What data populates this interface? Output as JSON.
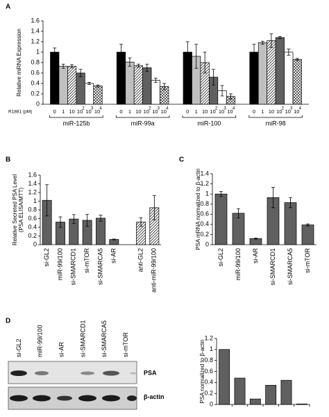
{
  "chart_data": [
    {
      "panel": "A",
      "type": "bar",
      "ylabel": [
        "Relative miRNA Expression"
      ],
      "xlabel": "R1881 (pM)",
      "categories": [
        "miR-125b",
        "miR-99a",
        "miR-100",
        "miR-98"
      ],
      "ylim": [
        0,
        1.6
      ],
      "yticks": [
        0,
        0.2,
        0.4,
        0.6,
        0.8,
        1,
        1.2,
        1.4,
        1.6
      ],
      "series": [
        {
          "name": "0",
          "color": "#000000",
          "values": [
            1,
            1,
            1,
            1
          ],
          "errors": [
            0.08,
            0.15,
            0.2,
            0.15
          ]
        },
        {
          "name": "1",
          "color": "#c0c0c0",
          "values": [
            0.73,
            0.81,
            0.92,
            1.18
          ],
          "errors": [
            0.04,
            0.08,
            0.23,
            0.03
          ]
        },
        {
          "name": "10",
          "color": "#ffffff",
          "pattern": "diagonal",
          "values": [
            0.73,
            0.74,
            0.8,
            1.22
          ],
          "errors": [
            0.03,
            0.03,
            0.2,
            0.13
          ]
        },
        {
          "name": "10",
          "exponent": "2",
          "color": "#606060",
          "values": [
            0.6,
            0.7,
            0.52,
            1.28
          ],
          "errors": [
            0.07,
            0.07,
            0.15,
            0.02
          ]
        },
        {
          "name": "10",
          "exponent": "3",
          "color": "#ffffff",
          "values": [
            0.4,
            0.46,
            0.26,
            1.0
          ],
          "errors": [
            0.02,
            0.04,
            0.1,
            0.06
          ]
        },
        {
          "name": "10",
          "exponent": "4",
          "color": "#ffffff",
          "pattern": "crosshatch",
          "values": [
            0.35,
            0.34,
            0.15,
            0.86
          ],
          "errors": [
            0.02,
            0.06,
            0.05,
            0.02
          ]
        }
      ]
    },
    {
      "panel": "B",
      "type": "bar",
      "ylabel": [
        "Relative Secreted PSA Level",
        "(PSA ELISA/MTT)"
      ],
      "categories": [
        "si-GL2",
        "miR-99/100",
        "si-SMARCD1",
        "si-mTOR",
        "si-SMARCA5",
        "si-AR",
        null,
        "anti-GL2",
        "anti-miR-99/100"
      ],
      "values": [
        1.02,
        0.52,
        0.59,
        0.56,
        0.61,
        0.12,
        null,
        0.52,
        0.85
      ],
      "errors": [
        0.36,
        0.12,
        0.1,
        0.14,
        0.07,
        0.01,
        null,
        0.1,
        0.28
      ],
      "color": "#606060",
      "bar_patterns": [
        null,
        null,
        null,
        null,
        null,
        null,
        null,
        "diagonal",
        "diagonal"
      ],
      "ylim": [
        0,
        1.6
      ],
      "yticks": [
        0,
        0.2,
        0.4,
        0.6,
        0.8,
        1,
        1.2,
        1.4,
        1.6
      ]
    },
    {
      "panel": "C",
      "type": "bar",
      "ylabel": [
        "PSA mRNA normalized to β-actin"
      ],
      "categories": [
        "si-GL2",
        "miR-99/100",
        "si-AR",
        "si-SMARCD1",
        "si-SMARCA5",
        "si-mTOR"
      ],
      "values": [
        1.0,
        0.62,
        0.12,
        0.93,
        0.83,
        0.39
      ],
      "errors": [
        0.05,
        0.09,
        0.01,
        0.2,
        0.1,
        0.02
      ],
      "color": "#606060",
      "ylim": [
        0,
        1.4
      ],
      "yticks": [
        0,
        0.2,
        0.4,
        0.6,
        0.8,
        1,
        1.2,
        1.4
      ]
    },
    {
      "panel": "D",
      "type": "blot",
      "lanes": [
        "si-GL2",
        "miR-99/100",
        "si-AR",
        "si-SMARCD1",
        "si-SMARCA5",
        "si-mTOR"
      ],
      "rows": [
        "PSA",
        "β-actin"
      ]
    },
    {
      "type": "bar",
      "ylabel": [
        "PSA normalized to β-actin"
      ],
      "values": [
        1.0,
        0.48,
        0.1,
        0.35,
        0.44,
        0.01
      ],
      "color": "#606060",
      "ylim": [
        0,
        1.2
      ],
      "yticks": [
        0,
        0.2,
        0.4,
        0.6,
        0.8,
        1,
        1.2
      ]
    }
  ]
}
